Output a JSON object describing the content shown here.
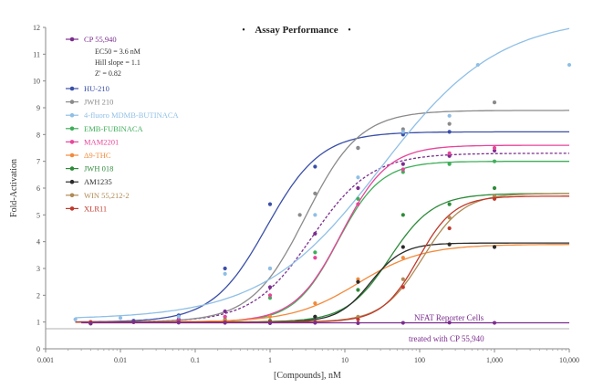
{
  "chart_data": {
    "type": "scatter",
    "title": "Assay Performance",
    "title_bullet": "•",
    "xlabel": "[Compounds], nM",
    "ylabel": "Fold-Activation",
    "xscale": "log",
    "xlim": [
      0.001,
      10000
    ],
    "ylim": [
      0,
      12
    ],
    "x_ticks": [
      0.001,
      0.01,
      0.1,
      1,
      10,
      100,
      1000,
      10000
    ],
    "x_tick_labels": [
      "0.001",
      "0.01",
      "0.1",
      "1",
      "10",
      "100",
      "1,000",
      "10,000"
    ],
    "y_ticks": [
      0,
      1,
      2,
      3,
      4,
      5,
      6,
      7,
      8,
      9,
      10,
      11,
      12
    ],
    "y_tick_labels": [
      "0",
      "1",
      "2",
      "3",
      "4",
      "5",
      "6",
      "7",
      "8",
      "9",
      "10",
      "11",
      "12"
    ],
    "legend_position": "top-left",
    "reference_line_y": 1,
    "stats": {
      "ec50": "EC50 = 3.6 nM",
      "hill": "Hill slope = 1.1",
      "zprime": "Z' = 0.82"
    },
    "annotation": {
      "line1": "NFAT Reporter Cells",
      "line2": "treated with CP 55,940"
    },
    "series": [
      {
        "name": "CP 55,940",
        "color": "#7b2d8e",
        "dashed": true,
        "bottom": 1,
        "top": 7.3,
        "ec50": 3.6,
        "hill": 1.1,
        "x": [
          0.004,
          0.015,
          0.06,
          0.25,
          1,
          4,
          15,
          60,
          250,
          1000
        ],
        "y": [
          0.95,
          1.0,
          1.1,
          1.4,
          2.3,
          4.3,
          6.0,
          6.9,
          7.2,
          7.4
        ]
      },
      {
        "name": "HU-210",
        "color": "#3a4fa8",
        "bottom": 1,
        "top": 8.1,
        "ec50": 0.9,
        "hill": 1.2,
        "x": [
          0.004,
          0.015,
          0.06,
          0.25,
          1,
          4,
          15,
          60,
          250
        ],
        "y": [
          1.0,
          1.05,
          1.25,
          3.0,
          5.4,
          6.8,
          7.5,
          8.0,
          8.1
        ]
      },
      {
        "name": "JWH 210",
        "color": "#8a8a8a",
        "bottom": 1,
        "top": 8.9,
        "ec50": 3.0,
        "hill": 1.2,
        "x": [
          0.004,
          0.015,
          0.06,
          0.25,
          1,
          2.5,
          4,
          15,
          60,
          250,
          1000
        ],
        "y": [
          1.0,
          1.0,
          1.0,
          1.2,
          3.0,
          5.0,
          5.8,
          7.5,
          8.2,
          8.4,
          9.2
        ]
      },
      {
        "name": "4-fluoro MDMB-BUTINACA",
        "color": "#8fbfe6",
        "bottom": 1.1,
        "top": 12.4,
        "ec50": 30,
        "hill": 0.55,
        "x": [
          0.0025,
          0.01,
          0.06,
          0.25,
          1,
          4,
          15,
          60,
          250,
          600,
          10000
        ],
        "y": [
          1.1,
          1.15,
          1.2,
          2.8,
          3.0,
          5.0,
          6.4,
          8.1,
          8.7,
          10.6,
          10.6
        ]
      },
      {
        "name": "EMB-FUBINACA",
        "color": "#3fae5a",
        "bottom": 1,
        "top": 7.0,
        "ec50": 8,
        "hill": 1.5,
        "x": [
          0.004,
          0.015,
          0.06,
          0.25,
          1,
          4,
          15,
          60,
          250,
          1000
        ],
        "y": [
          0.95,
          1.0,
          1.0,
          1.1,
          1.9,
          3.6,
          5.6,
          6.6,
          6.9,
          7.0
        ]
      },
      {
        "name": "MAM2201",
        "color": "#e8459a",
        "bottom": 1,
        "top": 7.6,
        "ec50": 9,
        "hill": 1.4,
        "x": [
          0.004,
          0.015,
          0.06,
          0.25,
          1,
          4,
          15,
          60,
          250,
          1000
        ],
        "y": [
          1.0,
          1.0,
          1.05,
          1.2,
          2.0,
          3.4,
          5.4,
          6.7,
          7.3,
          7.5
        ]
      },
      {
        "name": "Δ9-THC",
        "color": "#f28a3c",
        "bottom": 1,
        "top": 3.9,
        "ec50": 15,
        "hill": 1.0,
        "x": [
          0.004,
          0.015,
          0.06,
          0.25,
          1,
          4,
          15,
          60,
          250
        ],
        "y": [
          1.0,
          1.0,
          1.0,
          1.05,
          1.2,
          1.7,
          2.6,
          3.4,
          3.9
        ]
      },
      {
        "name": "JWH 018",
        "color": "#2e8b3a",
        "bottom": 1,
        "top": 5.8,
        "ec50": 40,
        "hill": 1.5,
        "x": [
          0.004,
          0.015,
          0.06,
          0.25,
          1,
          4,
          15,
          60,
          250,
          1000
        ],
        "y": [
          0.95,
          1.0,
          1.0,
          1.0,
          1.05,
          1.2,
          2.2,
          5.0,
          5.4,
          6.0
        ]
      },
      {
        "name": "AM1235",
        "color": "#2b2b2b",
        "bottom": 1,
        "top": 3.95,
        "ec50": 22,
        "hill": 2.0,
        "x": [
          0.004,
          0.015,
          0.06,
          0.25,
          1,
          4,
          15,
          60,
          250,
          1000
        ],
        "y": [
          0.95,
          1.0,
          1.0,
          1.0,
          1.0,
          1.2,
          2.5,
          3.8,
          3.9,
          3.8
        ]
      },
      {
        "name": "WIN 55,212-2",
        "color": "#b08a55",
        "bottom": 1,
        "top": 5.8,
        "ec50": 110,
        "hill": 1.6,
        "x": [
          0.004,
          0.015,
          0.06,
          0.25,
          1,
          4,
          15,
          60,
          250,
          1000
        ],
        "y": [
          0.95,
          1.0,
          1.0,
          1.0,
          1.0,
          1.0,
          1.2,
          2.6,
          4.9,
          5.7
        ]
      },
      {
        "name": "XLR11",
        "color": "#c0392b",
        "bottom": 1,
        "top": 5.7,
        "ec50": 95,
        "hill": 1.8,
        "x": [
          0.004,
          0.015,
          0.06,
          0.25,
          1,
          4,
          15,
          60,
          250,
          1000
        ],
        "y": [
          1.0,
          1.0,
          1.0,
          1.0,
          1.0,
          1.0,
          1.1,
          2.3,
          4.5,
          5.6
        ]
      },
      {
        "name": "",
        "color": "#7b2d8e",
        "flat": 0.97,
        "x": [
          0.004,
          0.015,
          0.06,
          0.25,
          1,
          4,
          15,
          60,
          250,
          1000
        ],
        "y": [
          0.95,
          1.0,
          0.98,
          0.97,
          0.96,
          0.97,
          0.96,
          0.97,
          0.98,
          0.97
        ]
      }
    ]
  }
}
